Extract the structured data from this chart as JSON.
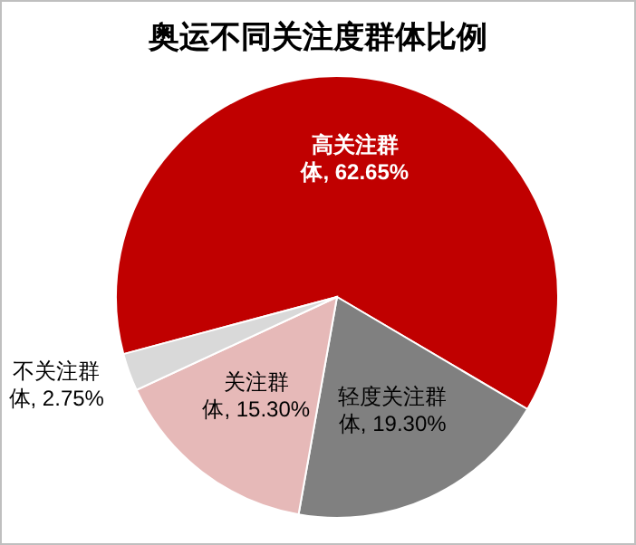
{
  "chart_data": {
    "type": "pie",
    "title": "奥运不同关注度群体比例",
    "categories": [
      "高关注群体",
      "轻度关注群体",
      "关注群体",
      "不关注群体"
    ],
    "values": [
      62.65,
      19.3,
      15.3,
      2.75
    ],
    "value_labels": [
      "62.65%",
      "19.30%",
      "15.30%",
      "2.75%"
    ],
    "colors": [
      "#c00000",
      "#808080",
      "#e6b9b8",
      "#d9d9d9"
    ]
  }
}
